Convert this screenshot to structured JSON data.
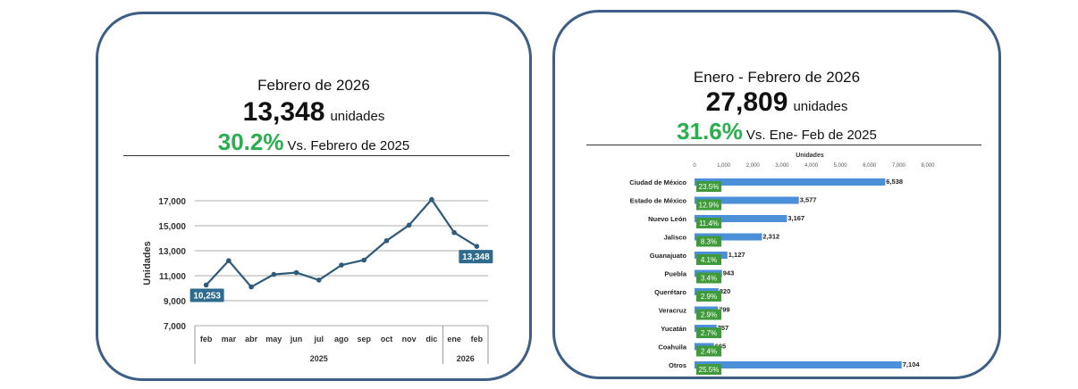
{
  "left_card": {
    "period": "Febrero de 2026",
    "total": "13,348",
    "unit": "unidades",
    "change_pct": "30.2%",
    "comparison": "Vs. Febrero de 2025"
  },
  "right_card": {
    "period": "Enero - Febrero de 2026",
    "total": "27,809",
    "unit": "unidades",
    "change_pct": "31.6%",
    "comparison": "Vs. Ene- Feb de 2025"
  },
  "colors": {
    "border": "#3d5f86",
    "line": "#2e5a7c",
    "label_box": "#2e6b8e",
    "bar": "#4a8fd8",
    "share_box": "#3f9a3a",
    "green_text": "#2aae4e"
  },
  "chart_data": [
    {
      "type": "line",
      "ylabel": "Unidades",
      "ylim": [
        7000,
        17000
      ],
      "yticks": [
        "7,000",
        "9,000",
        "11,000",
        "13,000",
        "15,000",
        "17,000"
      ],
      "categories": [
        "feb",
        "mar",
        "abr",
        "may",
        "jun",
        "jul",
        "ago",
        "sep",
        "oct",
        "nov",
        "dic",
        "ene",
        "feb"
      ],
      "groups": [
        {
          "label": "2025",
          "count": 11
        },
        {
          "label": "2026",
          "count": 2
        }
      ],
      "values": [
        10253,
        12200,
        10100,
        11100,
        11250,
        10650,
        11850,
        12250,
        13800,
        15050,
        17100,
        14450,
        13348
      ],
      "data_labels": [
        {
          "index": 0,
          "text": "10,253"
        },
        {
          "index": 12,
          "text": "13,348"
        }
      ]
    },
    {
      "type": "bar",
      "orientation": "horizontal",
      "xlabel": "Unidades",
      "xlim": [
        0,
        8000
      ],
      "xticks": [
        "0",
        "1,000",
        "2,000",
        "3,000",
        "4,000",
        "5,000",
        "6,000",
        "7,000",
        "8,000"
      ],
      "categories": [
        "Ciudad de México",
        "Estado de México",
        "Nuevo León",
        "Jalisco",
        "Guanajuato",
        "Puebla",
        "Querétaro",
        "Veracruz",
        "Yucatán",
        "Coahuila",
        "Otros"
      ],
      "values": [
        6538,
        3577,
        3167,
        2312,
        1127,
        943,
        820,
        799,
        757,
        665,
        7104
      ],
      "value_labels": [
        "6,538",
        "3,577",
        "3,167",
        "2,312",
        "1,127",
        "943",
        "820",
        "799",
        "757",
        "665",
        "7,104"
      ],
      "shares": [
        "23.5%",
        "12.9%",
        "11.4%",
        "8.3%",
        "4.1%",
        "3.4%",
        "2.9%",
        "2.9%",
        "2.7%",
        "2.4%",
        "25.5%"
      ]
    }
  ]
}
